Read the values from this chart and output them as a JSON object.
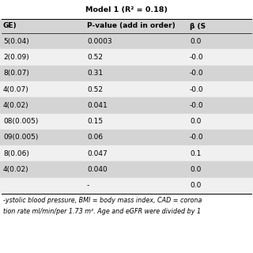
{
  "title": "Model 1 (R² = 0.18)",
  "col1_header": "GE)",
  "col2_header": "P-value (add in order)",
  "col3_header": "β (S",
  "rows": [
    [
      "5(0.04)",
      "0.0003",
      "0.0"
    ],
    [
      "2(0.09)",
      "0.52",
      "-0.0"
    ],
    [
      "8(0.07)",
      "0.31",
      "-0.0"
    ],
    [
      "4(0.07)",
      "0.52",
      "-0.0"
    ],
    [
      "4(0.02)",
      "0.041",
      "-0.0"
    ],
    [
      "08(0.005)",
      "0.15",
      "0.0"
    ],
    [
      "09(0.005)",
      "0.06",
      "-0.0"
    ],
    [
      "8(0.06)",
      "0.047",
      "0.1"
    ],
    [
      "4(0.02)",
      "0.040",
      "0.0"
    ],
    [
      "",
      "-",
      "0.0"
    ]
  ],
  "footnote_line1": "-ystolic blood pressure, BMI = body mass index, CAD = corona",
  "footnote_line2": "tion rate ml/min/per 1.73 m². Age and eGFR were divided by 1",
  "row_colors": [
    "#d4d4d4",
    "#f0f0f0",
    "#d4d4d4",
    "#f0f0f0",
    "#d4d4d4",
    "#f0f0f0",
    "#d4d4d4",
    "#f0f0f0",
    "#d4d4d4",
    "#f0f0f0"
  ],
  "header_bg": "#d4d4d4",
  "bg_color": "#ffffff",
  "title_fontsize": 6.8,
  "header_fontsize": 6.5,
  "cell_fontsize": 6.5,
  "footnote_fontsize": 5.8
}
